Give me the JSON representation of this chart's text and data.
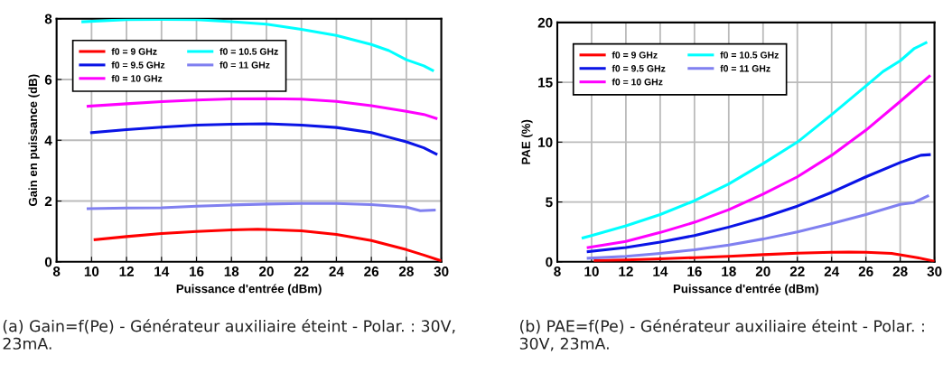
{
  "chart_data": [
    {
      "type": "line",
      "xlabel": "Puissance d'entrée (dBm)",
      "ylabel": "Gain en puissance (dB)",
      "xlim": [
        8,
        30
      ],
      "ylim": [
        0,
        8
      ],
      "xticks": [
        8,
        10,
        12,
        14,
        16,
        18,
        20,
        22,
        24,
        26,
        28,
        30
      ],
      "yticks": [
        0,
        2,
        4,
        6,
        8
      ],
      "grid": true,
      "legend": "top left",
      "marker": "none",
      "line_style": "solid",
      "annotations": [
        "(a) Gain=f(Pe) - Générateur auxiliaire éteint - Polar. : 30V, 23mA."
      ],
      "series": [
        {
          "name": "f0 = 9 GHz",
          "color": "#ff0000",
          "x": [
            10.2,
            12,
            14,
            16,
            18,
            19.5,
            22,
            24,
            26,
            28,
            29,
            30
          ],
          "values": [
            0.73,
            0.83,
            0.93,
            1.0,
            1.05,
            1.07,
            1.02,
            0.9,
            0.7,
            0.4,
            0.22,
            0.03
          ]
        },
        {
          "name": "f0 = 9.5 GHz",
          "color": "#0a14e6",
          "x": [
            10,
            12,
            14,
            16,
            18,
            20,
            22,
            24,
            26,
            27,
            28,
            29,
            29.7
          ],
          "values": [
            4.25,
            4.35,
            4.43,
            4.5,
            4.53,
            4.54,
            4.5,
            4.42,
            4.25,
            4.1,
            3.95,
            3.75,
            3.55
          ]
        },
        {
          "name": "f0 = 10 GHz",
          "color": "#ff00ff",
          "x": [
            9.8,
            12,
            14,
            16,
            18,
            20,
            22,
            24,
            26,
            28,
            29,
            29.7
          ],
          "values": [
            5.12,
            5.2,
            5.27,
            5.32,
            5.36,
            5.37,
            5.35,
            5.28,
            5.14,
            4.95,
            4.85,
            4.72
          ]
        },
        {
          "name": "f0 = 10.5 GHz",
          "color": "#00ffff",
          "x": [
            9.5,
            12,
            14,
            16,
            18,
            20,
            22,
            24,
            26,
            27,
            28,
            29,
            29.5
          ],
          "values": [
            7.9,
            7.97,
            7.98,
            7.97,
            7.9,
            7.82,
            7.65,
            7.45,
            7.15,
            6.95,
            6.65,
            6.45,
            6.3
          ]
        },
        {
          "name": "f0 = 11 GHz",
          "color": "#8080f0",
          "x": [
            9.8,
            12,
            14,
            16,
            18,
            20,
            22,
            24,
            26,
            28,
            28.8,
            29.6
          ],
          "values": [
            1.75,
            1.77,
            1.78,
            1.83,
            1.87,
            1.9,
            1.92,
            1.92,
            1.88,
            1.8,
            1.68,
            1.7
          ]
        }
      ]
    },
    {
      "type": "line",
      "xlabel": "Puissance d'entrée (dBm)",
      "ylabel": "PAE (%)",
      "xlim": [
        8,
        30
      ],
      "ylim": [
        0,
        20
      ],
      "xticks": [
        8,
        10,
        12,
        14,
        16,
        18,
        20,
        22,
        24,
        26,
        28,
        30
      ],
      "yticks": [
        0,
        5,
        10,
        15,
        20
      ],
      "grid": true,
      "legend": "top left",
      "marker": "none",
      "line_style": "solid",
      "annotations": [
        "(b) PAE=f(Pe) - Générateur auxiliaire éteint - Polar. : 30V, 23mA."
      ],
      "series": [
        {
          "name": "f0 = 9 GHz",
          "color": "#ff0000",
          "x": [
            10.2,
            12,
            14,
            16,
            18,
            20,
            22,
            24,
            25,
            26,
            27.5,
            29,
            30
          ],
          "values": [
            0.1,
            0.15,
            0.25,
            0.35,
            0.45,
            0.6,
            0.72,
            0.8,
            0.82,
            0.8,
            0.7,
            0.35,
            0.05
          ]
        },
        {
          "name": "f0 = 9.5 GHz",
          "color": "#0a14e6",
          "x": [
            9.8,
            12,
            14,
            16,
            18,
            20,
            22,
            24,
            26,
            28,
            29.2,
            29.7
          ],
          "values": [
            0.85,
            1.2,
            1.65,
            2.2,
            2.9,
            3.7,
            4.65,
            5.8,
            7.1,
            8.3,
            8.9,
            8.95
          ]
        },
        {
          "name": "f0 = 10 GHz",
          "color": "#ff00ff",
          "x": [
            9.8,
            12,
            14,
            16,
            18,
            20,
            22,
            24,
            26,
            28,
            29.7
          ],
          "values": [
            1.2,
            1.7,
            2.45,
            3.3,
            4.35,
            5.65,
            7.1,
            8.9,
            11.0,
            13.4,
            15.5
          ]
        },
        {
          "name": "f0 = 10.5 GHz",
          "color": "#00ffff",
          "x": [
            9.5,
            10,
            12,
            14,
            16,
            18,
            20,
            22,
            24,
            26,
            27,
            28,
            28.8,
            29.5
          ],
          "values": [
            2.0,
            2.2,
            3.0,
            3.95,
            5.1,
            6.5,
            8.2,
            10.0,
            12.3,
            14.7,
            15.9,
            16.8,
            17.8,
            18.3
          ]
        },
        {
          "name": "f0 = 11 GHz",
          "color": "#8080f0",
          "x": [
            9.8,
            12,
            14,
            16,
            18,
            20,
            22,
            24,
            26,
            28,
            28.8,
            29.6
          ],
          "values": [
            0.3,
            0.45,
            0.7,
            1.0,
            1.4,
            1.9,
            2.5,
            3.2,
            3.95,
            4.8,
            4.95,
            5.5
          ]
        }
      ]
    }
  ]
}
